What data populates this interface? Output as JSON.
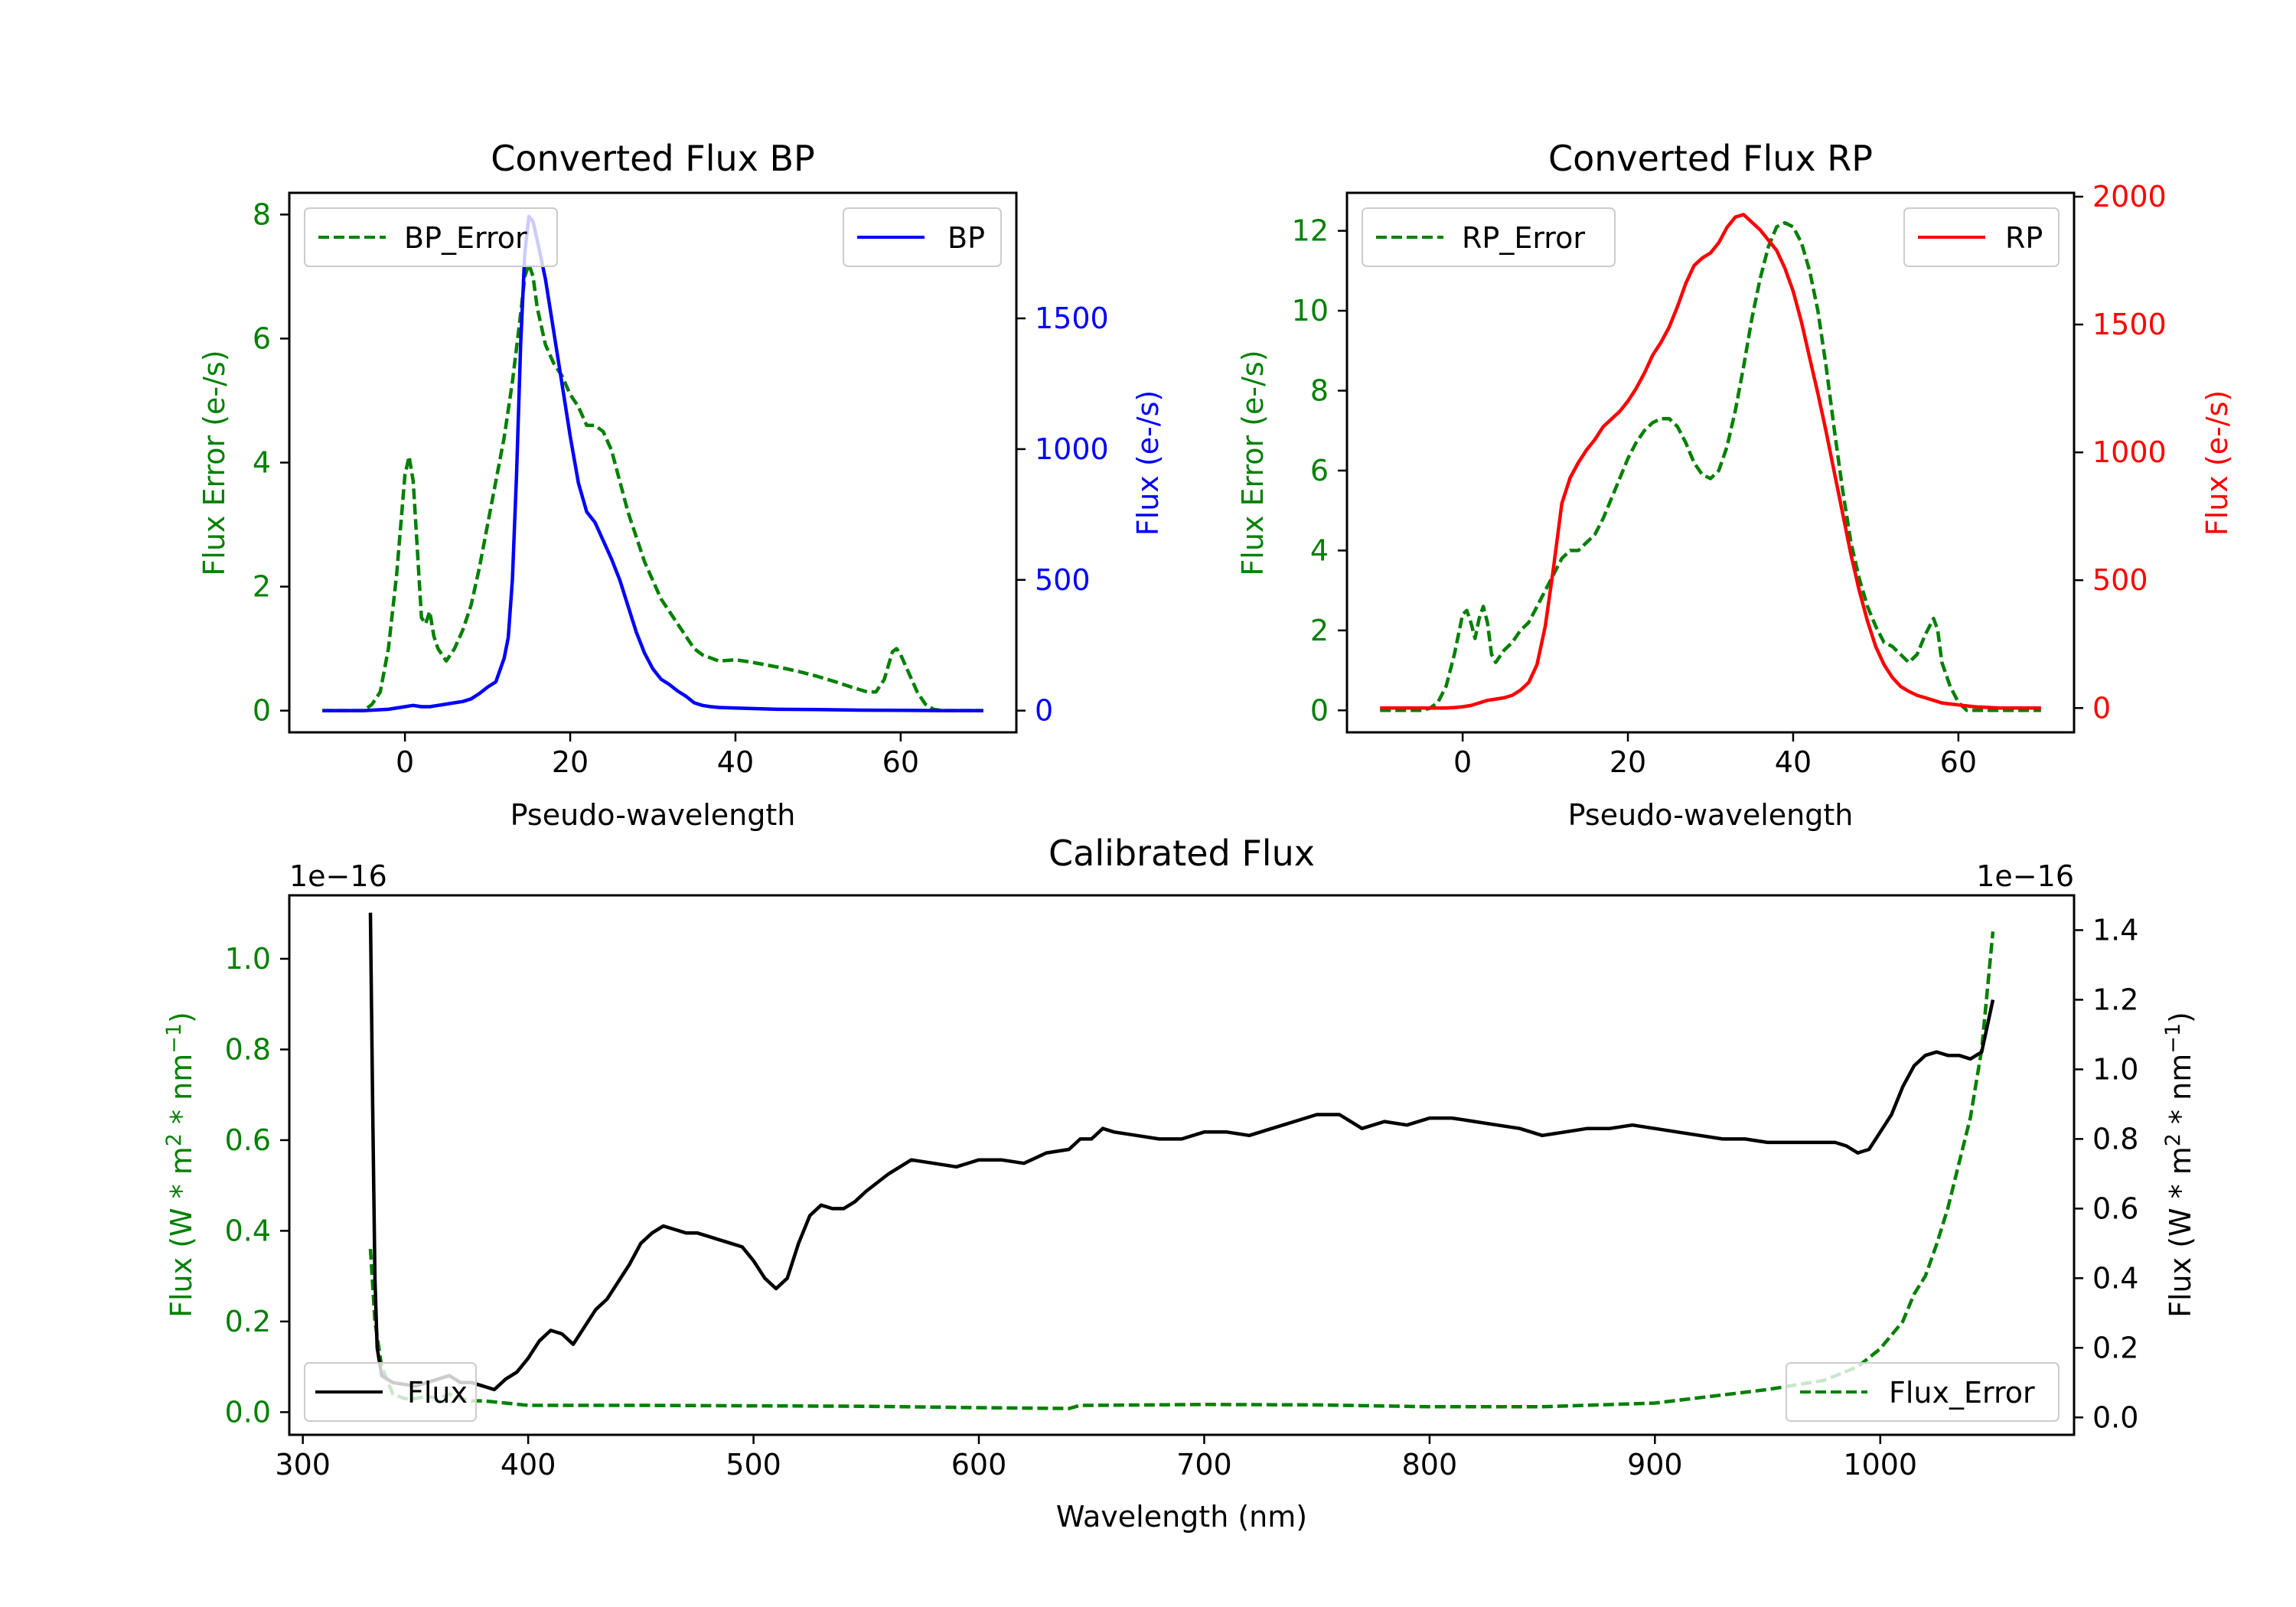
{
  "colors": {
    "green": "#008000",
    "blue": "#0000ff",
    "red": "#ff0000",
    "black": "#000000"
  },
  "chart_data": [
    {
      "id": "bp",
      "type": "line",
      "title": "Converted Flux BP",
      "xlabel": "Pseudo-wavelength",
      "ylabel_left": "Flux Error (e-/s)",
      "ylabel_right": "Flux (e-/s)",
      "xlim": [
        -14,
        74
      ],
      "ylim_left": [
        -0.35,
        8.35
      ],
      "ylim_right": [
        -83,
        1980
      ],
      "xticks": [
        0,
        20,
        40,
        60
      ],
      "yticks_left": [
        0,
        2,
        4,
        6,
        8
      ],
      "yticks_right": [
        0,
        500,
        1000,
        1500
      ],
      "legend_left": {
        "position": "top-left",
        "label": "BP_Error"
      },
      "legend_right": {
        "position": "top-right",
        "label": "BP"
      },
      "series": [
        {
          "name": "BP_Error",
          "axis": "left",
          "color": "#008000",
          "style": "dashed",
          "x": [
            -10,
            -5,
            -4,
            -3,
            -2,
            -1,
            0,
            0.5,
            1,
            1.5,
            2,
            2.5,
            3,
            3.5,
            4,
            5,
            6,
            7,
            8,
            9,
            10,
            11,
            12,
            13,
            14,
            14.5,
            15,
            15.5,
            16,
            17,
            18,
            19,
            20,
            21,
            22,
            23,
            24,
            25,
            26,
            27,
            28,
            29,
            30,
            31,
            32,
            33,
            34,
            35,
            36,
            37,
            38,
            40,
            42,
            44,
            46,
            48,
            50,
            52,
            54,
            56,
            57,
            58,
            59,
            59.5,
            60,
            61,
            62,
            63,
            64,
            65,
            70
          ],
          "y": [
            0,
            0,
            0.1,
            0.3,
            1.0,
            2.2,
            3.8,
            4.1,
            3.7,
            2.6,
            1.5,
            1.4,
            1.6,
            1.2,
            1.0,
            0.8,
            1.0,
            1.3,
            1.7,
            2.3,
            3.0,
            3.7,
            4.4,
            5.3,
            6.4,
            7.0,
            7.2,
            7.0,
            6.5,
            5.9,
            5.6,
            5.4,
            5.1,
            4.9,
            4.6,
            4.6,
            4.5,
            4.2,
            3.7,
            3.2,
            2.8,
            2.4,
            2.1,
            1.8,
            1.6,
            1.4,
            1.2,
            1.0,
            0.9,
            0.85,
            0.8,
            0.82,
            0.78,
            0.73,
            0.68,
            0.62,
            0.55,
            0.47,
            0.38,
            0.3,
            0.3,
            0.5,
            0.95,
            1.0,
            0.9,
            0.6,
            0.3,
            0.1,
            0.02,
            0,
            0
          ]
        },
        {
          "name": "BP",
          "axis": "right",
          "color": "#0000ff",
          "style": "solid",
          "x": [
            -10,
            -5,
            -2,
            0,
            1,
            2,
            3,
            4,
            5,
            6,
            7,
            8,
            9,
            10,
            11,
            12,
            12.5,
            13,
            13.5,
            14,
            14.5,
            15,
            15.5,
            16,
            17,
            18,
            19,
            20,
            21,
            22,
            23,
            24,
            25,
            26,
            27,
            28,
            29,
            30,
            31,
            32,
            33,
            34,
            35,
            36,
            37,
            38,
            40,
            42,
            45,
            50,
            55,
            60,
            65,
            70
          ],
          "y": [
            0,
            0,
            5,
            15,
            20,
            15,
            15,
            20,
            25,
            30,
            35,
            45,
            65,
            90,
            110,
            200,
            280,
            500,
            900,
            1400,
            1750,
            1890,
            1870,
            1800,
            1650,
            1450,
            1250,
            1050,
            870,
            760,
            720,
            650,
            580,
            500,
            400,
            300,
            220,
            160,
            120,
            100,
            75,
            55,
            30,
            20,
            15,
            12,
            10,
            8,
            5,
            4,
            2,
            1,
            0,
            0
          ]
        }
      ]
    },
    {
      "id": "rp",
      "type": "line",
      "title": "Converted Flux RP",
      "xlabel": "Pseudo-wavelength",
      "ylabel_left": "Flux Error (e-/s)",
      "ylabel_right": "Flux (e-/s)",
      "xlim": [
        -14,
        74
      ],
      "ylim_left": [
        -0.55,
        12.95
      ],
      "ylim_right": [
        -95,
        2015
      ],
      "xticks": [
        0,
        20,
        40,
        60
      ],
      "yticks_left": [
        0,
        2,
        4,
        6,
        8,
        10,
        12
      ],
      "yticks_right": [
        0,
        500,
        1000,
        1500,
        2000
      ],
      "legend_left": {
        "position": "top-left",
        "label": "RP_Error"
      },
      "legend_right": {
        "position": "top-right",
        "label": "RP"
      },
      "series": [
        {
          "name": "RP_Error",
          "axis": "left",
          "color": "#008000",
          "style": "dashed",
          "x": [
            -10,
            -5,
            -4,
            -3,
            -2,
            -1,
            0,
            0.5,
            1,
            1.5,
            2,
            2.5,
            3,
            3.5,
            4,
            5,
            6,
            7,
            8,
            9,
            10,
            11,
            12,
            13,
            14,
            15,
            16,
            17,
            18,
            19,
            20,
            21,
            22,
            23,
            24,
            25,
            26,
            27,
            28,
            29,
            30,
            31,
            32,
            33,
            34,
            35,
            36,
            37,
            38,
            39,
            40,
            41,
            42,
            43,
            44,
            45,
            46,
            47,
            48,
            49,
            50,
            51,
            52,
            53,
            54,
            55,
            56,
            57,
            57.5,
            58,
            59,
            60,
            61,
            62,
            63,
            64,
            70
          ],
          "y": [
            0,
            0,
            0.05,
            0.2,
            0.6,
            1.4,
            2.4,
            2.5,
            2.2,
            1.8,
            2.3,
            2.6,
            2.2,
            1.4,
            1.2,
            1.5,
            1.7,
            2.0,
            2.2,
            2.6,
            3.0,
            3.4,
            3.8,
            4.0,
            4.0,
            4.2,
            4.4,
            4.8,
            5.3,
            5.8,
            6.3,
            6.7,
            7.0,
            7.2,
            7.3,
            7.3,
            7.1,
            6.7,
            6.2,
            5.9,
            5.8,
            6.0,
            6.6,
            7.5,
            8.6,
            9.8,
            10.8,
            11.6,
            12.1,
            12.2,
            12.1,
            11.7,
            11.0,
            10.0,
            8.6,
            7.0,
            5.5,
            4.2,
            3.3,
            2.6,
            2.1,
            1.7,
            1.6,
            1.4,
            1.2,
            1.4,
            1.9,
            2.3,
            2.0,
            1.2,
            0.6,
            0.2,
            0.0,
            0,
            0,
            0,
            0
          ]
        },
        {
          "name": "RP",
          "axis": "right",
          "color": "#ff0000",
          "style": "solid",
          "x": [
            -10,
            -5,
            -3,
            -2,
            -1,
            0,
            1,
            2,
            3,
            4,
            5,
            6,
            7,
            8,
            9,
            10,
            11,
            12,
            13,
            14,
            15,
            16,
            17,
            18,
            19,
            20,
            21,
            22,
            23,
            24,
            25,
            26,
            27,
            28,
            29,
            30,
            31,
            32,
            33,
            34,
            35,
            36,
            37,
            38,
            39,
            40,
            41,
            42,
            43,
            44,
            45,
            46,
            47,
            48,
            49,
            50,
            51,
            52,
            53,
            54,
            55,
            56,
            57,
            58,
            60,
            62,
            65,
            70
          ],
          "y": [
            0,
            0,
            0,
            0,
            2,
            5,
            10,
            20,
            30,
            35,
            40,
            50,
            70,
            100,
            170,
            320,
            550,
            800,
            900,
            960,
            1010,
            1050,
            1100,
            1130,
            1160,
            1200,
            1250,
            1310,
            1380,
            1430,
            1490,
            1570,
            1660,
            1730,
            1760,
            1780,
            1820,
            1880,
            1920,
            1930,
            1900,
            1870,
            1830,
            1790,
            1720,
            1630,
            1510,
            1370,
            1230,
            1080,
            920,
            760,
            600,
            460,
            340,
            240,
            170,
            120,
            85,
            65,
            50,
            40,
            30,
            20,
            12,
            5,
            0,
            0
          ]
        }
      ]
    },
    {
      "id": "calibrated",
      "type": "line",
      "title": "Calibrated Flux",
      "xlabel": "Wavelength (nm)",
      "ylabel_left": "Flux (W * m",
      "ylabel_right": "Flux (W * m",
      "ylabel_parts": {
        "exp1": "2",
        "mid": " * nm",
        "exp2": "−1",
        "end": ")"
      },
      "offset_left": "1e−16",
      "offset_right": "1e−16",
      "xlim": [
        294,
        1086
      ],
      "ylim_left": [
        -0.05,
        1.14
      ],
      "ylim_right": [
        -0.05,
        1.5
      ],
      "xticks": [
        300,
        400,
        500,
        600,
        700,
        800,
        900,
        1000
      ],
      "yticks_left": [
        "0.0",
        "0.2",
        "0.4",
        "0.6",
        "0.8",
        "1.0"
      ],
      "yticks_right": [
        "0.0",
        "0.2",
        "0.4",
        "0.6",
        "0.8",
        "1.0",
        "1.2",
        "1.4"
      ],
      "legend_left": {
        "position": "bottom-left",
        "label": "Flux"
      },
      "legend_right": {
        "position": "bottom-right",
        "label": "Flux_Error"
      },
      "series": [
        {
          "name": "Flux_Error",
          "axis": "left",
          "color": "#008000",
          "style": "dashed",
          "x": [
            330,
            332,
            335,
            340,
            345,
            350,
            355,
            360,
            365,
            370,
            375,
            380,
            390,
            400,
            420,
            450,
            500,
            550,
            600,
            640,
            645,
            650,
            700,
            750,
            800,
            850,
            900,
            950,
            975,
            990,
            1000,
            1010,
            1015,
            1020,
            1025,
            1030,
            1035,
            1040,
            1045,
            1050
          ],
          "y": [
            0.36,
            0.2,
            0.1,
            0.04,
            0.03,
            0.03,
            0.035,
            0.03,
            0.04,
            0.03,
            0.025,
            0.025,
            0.02,
            0.015,
            0.015,
            0.015,
            0.014,
            0.013,
            0.01,
            0.008,
            0.015,
            0.015,
            0.017,
            0.016,
            0.012,
            0.012,
            0.02,
            0.05,
            0.07,
            0.1,
            0.14,
            0.2,
            0.26,
            0.3,
            0.37,
            0.45,
            0.55,
            0.65,
            0.8,
            1.06
          ]
        },
        {
          "name": "Flux",
          "axis": "right",
          "color": "#000000",
          "style": "solid",
          "x": [
            330,
            331,
            332,
            333,
            335,
            340,
            350,
            360,
            365,
            370,
            375,
            380,
            385,
            390,
            395,
            400,
            405,
            410,
            415,
            420,
            425,
            430,
            435,
            440,
            445,
            450,
            455,
            460,
            465,
            470,
            475,
            480,
            485,
            490,
            495,
            500,
            505,
            510,
            515,
            520,
            525,
            530,
            535,
            540,
            545,
            550,
            560,
            570,
            580,
            590,
            600,
            610,
            620,
            630,
            640,
            645,
            650,
            655,
            660,
            670,
            680,
            690,
            700,
            710,
            720,
            730,
            740,
            750,
            760,
            770,
            780,
            790,
            800,
            810,
            820,
            830,
            840,
            850,
            860,
            870,
            880,
            890,
            900,
            910,
            920,
            930,
            940,
            950,
            960,
            970,
            980,
            985,
            990,
            995,
            1000,
            1005,
            1010,
            1015,
            1020,
            1025,
            1030,
            1035,
            1040,
            1045,
            1050
          ],
          "y": [
            1.45,
            0.9,
            0.4,
            0.2,
            0.12,
            0.1,
            0.09,
            0.11,
            0.12,
            0.1,
            0.1,
            0.09,
            0.08,
            0.11,
            0.13,
            0.17,
            0.22,
            0.25,
            0.24,
            0.21,
            0.26,
            0.31,
            0.34,
            0.39,
            0.44,
            0.5,
            0.53,
            0.55,
            0.54,
            0.53,
            0.53,
            0.52,
            0.51,
            0.5,
            0.49,
            0.45,
            0.4,
            0.37,
            0.4,
            0.5,
            0.58,
            0.61,
            0.6,
            0.6,
            0.62,
            0.65,
            0.7,
            0.74,
            0.73,
            0.72,
            0.74,
            0.74,
            0.73,
            0.76,
            0.77,
            0.8,
            0.8,
            0.83,
            0.82,
            0.81,
            0.8,
            0.8,
            0.82,
            0.82,
            0.81,
            0.83,
            0.85,
            0.87,
            0.87,
            0.83,
            0.85,
            0.84,
            0.86,
            0.86,
            0.85,
            0.84,
            0.83,
            0.81,
            0.82,
            0.83,
            0.83,
            0.84,
            0.83,
            0.82,
            0.81,
            0.8,
            0.8,
            0.79,
            0.79,
            0.79,
            0.79,
            0.78,
            0.76,
            0.77,
            0.82,
            0.87,
            0.95,
            1.01,
            1.04,
            1.05,
            1.04,
            1.04,
            1.03,
            1.05,
            1.2
          ]
        }
      ]
    }
  ]
}
